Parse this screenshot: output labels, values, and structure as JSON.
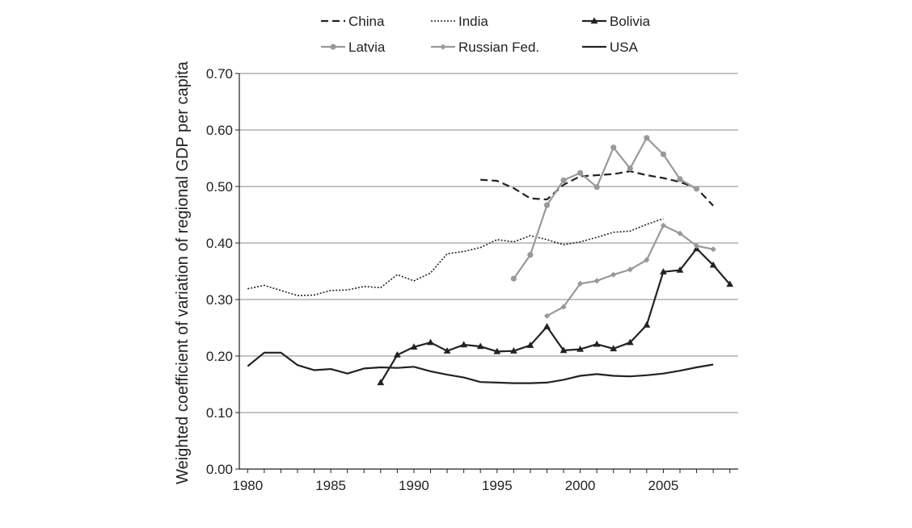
{
  "chart_data": {
    "type": "line",
    "title": "",
    "xlabel": "",
    "ylabel": "Weighted coefficient of variation of regional GDP per capita",
    "xlim": [
      1979.5,
      2009.5
    ],
    "ylim": [
      0,
      0.7
    ],
    "x_ticks": [
      1980,
      1985,
      1990,
      1995,
      2000,
      2005
    ],
    "x_tick_labels": [
      "1980",
      "1985",
      "1990",
      "1995",
      "2000",
      "2005"
    ],
    "y_ticks": [
      0,
      0.1,
      0.2,
      0.3,
      0.4,
      0.5,
      0.6,
      0.7
    ],
    "y_tick_labels": [
      "0.00",
      "0.10",
      "0.20",
      "0.30",
      "0.40",
      "0.50",
      "0.60",
      "0.70"
    ],
    "grid": "horizontal",
    "legend_position": "top",
    "series": [
      {
        "name": "China",
        "color": "#222222",
        "style": "dashed",
        "marker": "none",
        "x": [
          1994,
          1995,
          1996,
          1997,
          1998,
          1999,
          2000,
          2001,
          2002,
          2003,
          2004,
          2005,
          2006,
          2007,
          2008
        ],
        "y": [
          0.512,
          0.51,
          0.497,
          0.479,
          0.477,
          0.503,
          0.518,
          0.52,
          0.522,
          0.527,
          0.52,
          0.515,
          0.508,
          0.497,
          0.466
        ]
      },
      {
        "name": "India",
        "color": "#222222",
        "style": "dotted",
        "marker": "none",
        "x": [
          1980,
          1981,
          1982,
          1983,
          1984,
          1985,
          1986,
          1987,
          1988,
          1989,
          1990,
          1991,
          1992,
          1993,
          1994,
          1995,
          1996,
          1997,
          1998,
          1999,
          2000,
          2001,
          2002,
          2003,
          2004,
          2005
        ],
        "y": [
          0.319,
          0.325,
          0.316,
          0.307,
          0.308,
          0.316,
          0.317,
          0.323,
          0.321,
          0.344,
          0.333,
          0.347,
          0.381,
          0.385,
          0.392,
          0.406,
          0.402,
          0.413,
          0.406,
          0.397,
          0.402,
          0.41,
          0.419,
          0.421,
          0.433,
          0.443
        ]
      },
      {
        "name": "Bolivia",
        "color": "#222222",
        "style": "solid",
        "marker": "triangle",
        "x": [
          1988,
          1989,
          1990,
          1991,
          1992,
          1993,
          1994,
          1995,
          1996,
          1997,
          1998,
          1999,
          2000,
          2001,
          2002,
          2003,
          2004,
          2005,
          2006,
          2007,
          2008,
          2009
        ],
        "y": [
          0.153,
          0.202,
          0.216,
          0.224,
          0.209,
          0.22,
          0.217,
          0.208,
          0.209,
          0.219,
          0.252,
          0.21,
          0.212,
          0.221,
          0.213,
          0.224,
          0.255,
          0.349,
          0.352,
          0.39,
          0.361,
          0.327
        ]
      },
      {
        "name": "Latvia",
        "color": "#999999",
        "style": "solid",
        "marker": "circle",
        "x": [
          1996,
          1997,
          1998,
          1999,
          2000,
          2001,
          2002,
          2003,
          2004,
          2005,
          2006,
          2007
        ],
        "y": [
          0.337,
          0.379,
          0.467,
          0.511,
          0.524,
          0.499,
          0.569,
          0.532,
          0.586,
          0.557,
          0.513,
          0.496
        ]
      },
      {
        "name": "Russian Fed.",
        "color": "#999999",
        "style": "solid",
        "marker": "diamond",
        "x": [
          1998,
          1999,
          2000,
          2001,
          2002,
          2003,
          2004,
          2005,
          2006,
          2007,
          2008
        ],
        "y": [
          0.271,
          0.287,
          0.328,
          0.333,
          0.344,
          0.353,
          0.37,
          0.431,
          0.417,
          0.395,
          0.389
        ]
      },
      {
        "name": "USA",
        "color": "#222222",
        "style": "solid",
        "marker": "none",
        "x": [
          1980,
          1981,
          1982,
          1983,
          1984,
          1985,
          1986,
          1987,
          1988,
          1989,
          1990,
          1991,
          1992,
          1993,
          1994,
          1995,
          1996,
          1997,
          1998,
          1999,
          2000,
          2001,
          2002,
          2003,
          2004,
          2005,
          2006,
          2007,
          2008
        ],
        "y": [
          0.182,
          0.206,
          0.206,
          0.184,
          0.175,
          0.177,
          0.169,
          0.178,
          0.18,
          0.179,
          0.181,
          0.173,
          0.167,
          0.162,
          0.154,
          0.153,
          0.152,
          0.152,
          0.153,
          0.158,
          0.165,
          0.168,
          0.165,
          0.164,
          0.166,
          0.169,
          0.174,
          0.18,
          0.185
        ]
      }
    ]
  }
}
